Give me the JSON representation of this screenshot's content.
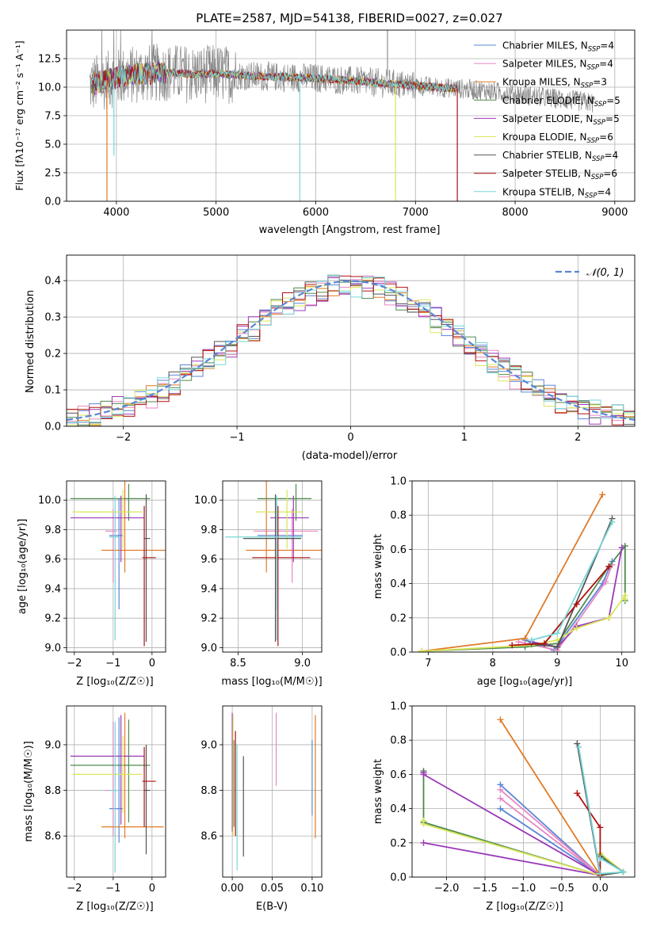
{
  "colors": {
    "Chabrier MILES": "#5b86d6",
    "Salpeter MILES": "#e887c2",
    "Kroupa MILES": "#e07b27",
    "Chabrier ELODIE": "#4e8a4e",
    "Salpeter ELODIE": "#9b3ab8",
    "Kroupa ELODIE": "#d9e65a",
    "Chabrier STELIB": "#555555",
    "Salpeter STELIB": "#b01010",
    "Kroupa STELIB": "#78d6d8",
    "data": "#888888",
    "normal": "#5b86d6"
  },
  "chart_data": [
    {
      "id": "spectrum",
      "type": "line",
      "title": "PLATE=2587, MJD=54138, FIBERID=0027, z=0.027",
      "xlabel": "wavelength [Angstrom, rest frame]",
      "ylabel": "Flux [fλ10⁻¹⁷ erg cm⁻² s⁻¹ A⁻¹]",
      "xlim": [
        3500,
        9200
      ],
      "ylim": [
        0,
        15
      ],
      "xticks": [
        "4000",
        "5000",
        "6000",
        "7000",
        "8000",
        "9000"
      ],
      "yticks": [
        "0.0",
        "2.5",
        "5.0",
        "7.5",
        "10.0",
        "12.5"
      ],
      "legend_position": "top-right",
      "legend": [
        {
          "model": "Chabrier MILES",
          "label": "Chabrier MILES, N",
          "sub": "SSP",
          "tail": "=4"
        },
        {
          "model": "Salpeter MILES",
          "label": "Salpeter MILES, N",
          "sub": "SSP",
          "tail": "=4"
        },
        {
          "model": "Kroupa MILES",
          "label": "Kroupa MILES, N",
          "sub": "SSP",
          "tail": "=3"
        },
        {
          "model": "Chabrier ELODIE",
          "label": "Chabrier ELODIE, N",
          "sub": "SSP",
          "tail": "=5"
        },
        {
          "model": "Salpeter ELODIE",
          "label": "Salpeter ELODIE, N",
          "sub": "SSP",
          "tail": "=5"
        },
        {
          "model": "Kroupa ELODIE",
          "label": "Kroupa ELODIE, N",
          "sub": "SSP",
          "tail": "=6"
        },
        {
          "model": "Chabrier STELIB",
          "label": "Chabrier STELIB, N",
          "sub": "SSP",
          "tail": "=4"
        },
        {
          "model": "Salpeter STELIB",
          "label": "Salpeter STELIB, N",
          "sub": "SSP",
          "tail": "=6"
        },
        {
          "model": "Kroupa STELIB",
          "label": "Kroupa STELIB, N",
          "sub": "SSP",
          "tail": "=4"
        }
      ],
      "continuum_x": [
        3750,
        3900,
        4000,
        4100,
        4300,
        4500,
        4800,
        5000,
        5300,
        5600,
        6000,
        6300,
        6600,
        6900,
        7200,
        7400,
        7700,
        8000,
        8300,
        8600,
        8800
      ],
      "continuum_y": [
        10.2,
        10.6,
        10.8,
        11.0,
        11.2,
        11.3,
        11.1,
        11.2,
        11.0,
        10.9,
        10.8,
        10.6,
        10.4,
        10.2,
        10.0,
        9.9,
        9.7,
        9.4,
        9.1,
        8.8,
        8.6
      ],
      "model_end_x": 7420,
      "dips": [
        {
          "model": "Kroupa STELIB",
          "x": 3975,
          "y": 4.0
        },
        {
          "model": "Kroupa MILES",
          "x": 3905,
          "y": 0.0
        },
        {
          "model": "Kroupa STELIB",
          "x": 5840,
          "y": 0.0
        },
        {
          "model": "Kroupa ELODIE",
          "x": 6800,
          "y": 0.0
        },
        {
          "model": "Salpeter STELIB",
          "x": 7420,
          "y": 0.0
        }
      ]
    },
    {
      "id": "residuals",
      "type": "histogram",
      "xlabel": "(data-model)/error",
      "ylabel": "Normed distribution",
      "xlim": [
        -2.5,
        2.5
      ],
      "ylim": [
        0,
        0.47
      ],
      "xticks": [
        -2,
        -1,
        0,
        1,
        2
      ],
      "xtick_labels": [
        "−2",
        "−1",
        "0",
        "1",
        "2"
      ],
      "yticks": [
        "0.0",
        "0.1",
        "0.2",
        "0.3",
        "0.4"
      ],
      "legend_position": "top-right",
      "legend_label": "𝒩(0, 1)",
      "bin_width": 0.1
    },
    {
      "id": "age-vs-Z",
      "type": "errorbar",
      "xlabel": "Z [log₁₀(Z/Z☉)]",
      "ylabel": "age  [log₁₀(age/yr)]",
      "xlim": [
        -2.2,
        0.35
      ],
      "ylim": [
        8.97,
        10.13
      ],
      "xticks": [
        -2,
        -1,
        0
      ],
      "xtick_labels": [
        "−2",
        "−1",
        "0"
      ],
      "yticks": [
        "9.0",
        "9.2",
        "9.4",
        "9.6",
        "9.8",
        "10.0"
      ],
      "points": [
        {
          "model": "Chabrier MILES",
          "x": -0.85,
          "xerr": [
            0.25,
            0.1
          ],
          "y": 9.76,
          "yerr": [
            0.5,
            0.25
          ]
        },
        {
          "model": "Salpeter MILES",
          "x": -1.0,
          "xerr": [
            0.2,
            0.1
          ],
          "y": 9.79,
          "yerr": [
            0.35,
            0.15
          ]
        },
        {
          "model": "Kroupa MILES",
          "x": -0.7,
          "xerr": [
            0.6,
            1.25
          ],
          "y": 9.66,
          "yerr": [
            0.15,
            0.47
          ]
        },
        {
          "model": "Chabrier ELODIE",
          "x": -0.6,
          "xerr": [
            1.5,
            0.55
          ],
          "y": 10.01,
          "yerr": [
            0.15,
            0.1
          ]
        },
        {
          "model": "Salpeter ELODIE",
          "x": -0.8,
          "xerr": [
            1.3,
            0.6
          ],
          "y": 9.88,
          "yerr": [
            0.3,
            0.15
          ]
        },
        {
          "model": "Kroupa ELODIE",
          "x": -0.75,
          "xerr": [
            1.3,
            0.5
          ],
          "y": 9.92,
          "yerr": [
            0.25,
            0.15
          ]
        },
        {
          "model": "Chabrier STELIB",
          "x": -0.15,
          "xerr": [
            0.05,
            0.1
          ],
          "y": 9.74,
          "yerr": [
            0.7,
            0.3
          ]
        },
        {
          "model": "Salpeter STELIB",
          "x": -0.2,
          "xerr": [
            0.05,
            0.3
          ],
          "y": 9.61,
          "yerr": [
            0.6,
            0.35
          ]
        },
        {
          "model": "Kroupa STELIB",
          "x": -0.95,
          "xerr": [
            0.15,
            0.1
          ],
          "y": 9.75,
          "yerr": [
            0.7,
            0.28
          ]
        }
      ]
    },
    {
      "id": "age-vs-mass",
      "type": "errorbar",
      "xlabel": "mass [log₁₀(M/M☉)]",
      "ylabel": "",
      "xlim": [
        8.38,
        9.15
      ],
      "ylim": [
        8.97,
        10.13
      ],
      "xticks": [
        8.5,
        9.0
      ],
      "xtick_labels": [
        "8.5",
        "9.0"
      ],
      "yticks": [
        "9.0",
        "9.2",
        "9.4",
        "9.6",
        "9.8",
        "10.0"
      ],
      "points": [
        {
          "model": "Chabrier MILES",
          "x": 8.8,
          "xerr": [
            0.15,
            0.2
          ],
          "y": 9.76,
          "yerr": [
            0.5,
            0.25
          ]
        },
        {
          "model": "Salpeter MILES",
          "x": 8.92,
          "xerr": [
            0.3,
            0.2
          ],
          "y": 9.79,
          "yerr": [
            0.35,
            0.15
          ]
        },
        {
          "model": "Kroupa MILES",
          "x": 8.72,
          "xerr": [
            0.16,
            0.43
          ],
          "y": 9.66,
          "yerr": [
            0.15,
            0.47
          ]
        },
        {
          "model": "Chabrier ELODIE",
          "x": 8.95,
          "xerr": [
            0.3,
            0.12
          ],
          "y": 10.01,
          "yerr": [
            0.15,
            0.1
          ]
        },
        {
          "model": "Salpeter ELODIE",
          "x": 8.93,
          "xerr": [
            0.18,
            0.12
          ],
          "y": 9.88,
          "yerr": [
            0.3,
            0.15
          ]
        },
        {
          "model": "Kroupa ELODIE",
          "x": 8.88,
          "xerr": [
            0.24,
            0.12
          ],
          "y": 9.92,
          "yerr": [
            0.25,
            0.15
          ]
        },
        {
          "model": "Chabrier STELIB",
          "x": 8.79,
          "xerr": [
            0.25,
            0.2
          ],
          "y": 9.74,
          "yerr": [
            0.7,
            0.3
          ]
        },
        {
          "model": "Salpeter STELIB",
          "x": 8.81,
          "xerr": [
            0.2,
            0.25
          ],
          "y": 9.61,
          "yerr": [
            0.6,
            0.35
          ]
        },
        {
          "model": "Kroupa STELIB",
          "x": 8.8,
          "xerr": [
            0.4,
            0.2
          ],
          "y": 9.75,
          "yerr": [
            0.7,
            0.28
          ]
        }
      ]
    },
    {
      "id": "weight-vs-age",
      "type": "line",
      "xlabel": "age  [log₁₀(age/yr)]",
      "ylabel": "mass weight",
      "xlim": [
        6.75,
        10.2
      ],
      "ylim": [
        0,
        1.0
      ],
      "xticks": [
        7,
        8,
        9,
        10
      ],
      "xtick_labels": [
        "7",
        "8",
        "9",
        "10"
      ],
      "yticks": [
        "0.0",
        "0.2",
        "0.4",
        "0.6",
        "0.8",
        "1.0"
      ],
      "series": [
        {
          "model": "Chabrier MILES",
          "x": [
            8.5,
            8.95,
            9.7,
            9.85
          ],
          "y": [
            0.07,
            0.01,
            0.4,
            0.53
          ]
        },
        {
          "model": "Salpeter MILES",
          "x": [
            8.4,
            9.0,
            9.75,
            9.85
          ],
          "y": [
            0.06,
            0.01,
            0.41,
            0.51
          ]
        },
        {
          "model": "Kroupa MILES",
          "x": [
            6.9,
            8.5,
            9.7
          ],
          "y": [
            0.005,
            0.08,
            0.92
          ]
        },
        {
          "model": "Chabrier ELODIE",
          "x": [
            6.9,
            8.5,
            9.0,
            9.8,
            10.05,
            10.05
          ],
          "y": [
            0.005,
            0.03,
            0.05,
            0.5,
            0.62,
            0.3
          ]
        },
        {
          "model": "Salpeter ELODIE",
          "x": [
            8.6,
            9.0,
            9.3,
            9.8,
            10.0
          ],
          "y": [
            0.06,
            0.03,
            0.15,
            0.2,
            0.61
          ]
        },
        {
          "model": "Kroupa ELODIE",
          "x": [
            6.9,
            8.6,
            9.0,
            9.3,
            9.8,
            10.05,
            10.05
          ],
          "y": [
            0.005,
            0.04,
            0.07,
            0.14,
            0.2,
            0.33,
            0.31
          ]
        },
        {
          "model": "Chabrier STELIB",
          "x": [
            8.6,
            9.0,
            9.85
          ],
          "y": [
            0.05,
            0.03,
            0.78
          ]
        },
        {
          "model": "Salpeter STELIB",
          "x": [
            8.3,
            8.8,
            9.3,
            9.8
          ],
          "y": [
            0.04,
            0.05,
            0.28,
            0.5
          ]
        },
        {
          "model": "Kroupa STELIB",
          "x": [
            8.6,
            9.0,
            9.85
          ],
          "y": [
            0.07,
            0.11,
            0.76
          ]
        }
      ]
    },
    {
      "id": "mass-vs-Z",
      "type": "errorbar",
      "xlabel": "Z [log₁₀(Z/Z☉)]",
      "ylabel": "mass [log₁₀(M/M☉)]",
      "xlim": [
        -2.2,
        0.35
      ],
      "ylim": [
        8.42,
        9.17
      ],
      "xticks": [
        -2,
        -1,
        0
      ],
      "xtick_labels": [
        "−2",
        "−1",
        "0"
      ],
      "yticks": [
        "8.6",
        "8.8",
        "9.0"
      ],
      "points": [
        {
          "model": "Chabrier MILES",
          "x": -0.85,
          "xerr": [
            0.25,
            0.1
          ],
          "y": 8.72,
          "yerr": [
            0.15,
            0.4
          ]
        },
        {
          "model": "Salpeter MILES",
          "x": -1.0,
          "xerr": [
            0.2,
            0.1
          ],
          "y": 8.8,
          "yerr": [
            0.2,
            0.3
          ]
        },
        {
          "model": "Kroupa MILES",
          "x": -0.7,
          "xerr": [
            0.6,
            1.0
          ],
          "y": 8.64,
          "yerr": [
            0.05,
            0.5
          ]
        },
        {
          "model": "Chabrier ELODIE",
          "x": -0.6,
          "xerr": [
            1.5,
            0.55
          ],
          "y": 8.91,
          "yerr": [
            0.25,
            0.2
          ]
        },
        {
          "model": "Salpeter ELODIE",
          "x": -0.8,
          "xerr": [
            1.3,
            0.6
          ],
          "y": 8.95,
          "yerr": [
            0.3,
            0.18
          ]
        },
        {
          "model": "Kroupa ELODIE",
          "x": -0.75,
          "xerr": [
            1.3,
            0.5
          ],
          "y": 8.87,
          "yerr": [
            0.17,
            0.17
          ]
        },
        {
          "model": "Chabrier STELIB",
          "x": -0.15,
          "xerr": [
            0.05,
            0.1
          ],
          "y": 8.8,
          "yerr": [
            0.28,
            0.2
          ]
        },
        {
          "model": "Salpeter STELIB",
          "x": -0.2,
          "xerr": [
            0.05,
            0.3
          ],
          "y": 8.84,
          "yerr": [
            0.2,
            0.15
          ]
        },
        {
          "model": "Kroupa STELIB",
          "x": -0.95,
          "xerr": [
            0.15,
            0.1
          ],
          "y": 8.8,
          "yerr": [
            0.36,
            0.3
          ]
        }
      ]
    },
    {
      "id": "mass-vs-EBV",
      "type": "errorbar",
      "xlabel": "E(B-V)",
      "ylabel": "",
      "xlim": [
        -0.012,
        0.112
      ],
      "ylim": [
        8.42,
        9.17
      ],
      "xticks": [
        0.0,
        0.05,
        0.1
      ],
      "xtick_labels": [
        "0.00",
        "0.05",
        "0.10"
      ],
      "yticks": [
        "8.6",
        "8.8",
        "9.0"
      ],
      "points": [
        {
          "model": "Chabrier MILES",
          "x": 0.1,
          "y": 8.85,
          "yerr": [
            0.16,
            0.17
          ]
        },
        {
          "model": "Salpeter MILES",
          "x": 0.055,
          "y": 8.98,
          "yerr": [
            0.16,
            0.16
          ]
        },
        {
          "model": "Kroupa MILES",
          "x": 0.104,
          "y": 8.86,
          "yerr": [
            0.27,
            0.27
          ]
        },
        {
          "model": "Chabrier ELODIE",
          "x": 0.002,
          "y": 8.83,
          "yerr": [
            0.19,
            0.19
          ]
        },
        {
          "model": "Salpeter ELODIE",
          "x": 0.0,
          "y": 8.92,
          "yerr": [
            0.3,
            0.22
          ]
        },
        {
          "model": "Kroupa ELODIE",
          "x": 0.001,
          "y": 8.87,
          "yerr": [
            0.27,
            0.26
          ]
        },
        {
          "model": "Chabrier STELIB",
          "x": 0.014,
          "y": 8.73,
          "yerr": [
            0.22,
            0.22
          ]
        },
        {
          "model": "Salpeter STELIB",
          "x": 0.004,
          "y": 8.83,
          "yerr": [
            0.23,
            0.23
          ]
        },
        {
          "model": "Kroupa STELIB",
          "x": 0.006,
          "y": 8.75,
          "yerr": [
            0.3,
            0.25
          ]
        }
      ]
    },
    {
      "id": "weight-vs-Z",
      "type": "line",
      "xlabel": "Z [log₁₀(Z/Z☉)]",
      "ylabel": "mass weight",
      "xlim": [
        -2.45,
        0.45
      ],
      "ylim": [
        0,
        1.0
      ],
      "xticks": [
        -2.0,
        -1.5,
        -1.0,
        -0.5,
        0.0
      ],
      "xtick_labels": [
        "−2.0",
        "−1.5",
        "−1.0",
        "−0.5",
        "0.0"
      ],
      "yticks": [
        "0.0",
        "0.2",
        "0.4",
        "0.6",
        "0.8",
        "1.0"
      ],
      "series": [
        {
          "model": "Chabrier MILES",
          "x": [
            -1.3,
            0.0,
            -1.3
          ],
          "y": [
            0.54,
            0.01,
            0.4
          ]
        },
        {
          "model": "Salpeter MILES",
          "x": [
            -1.3,
            0.0,
            -1.3
          ],
          "y": [
            0.51,
            0.01,
            0.46
          ]
        },
        {
          "model": "Kroupa MILES",
          "x": [
            -1.3,
            0.0
          ],
          "y": [
            0.92,
            0.01
          ]
        },
        {
          "model": "Chabrier ELODIE",
          "x": [
            -2.3,
            -2.3,
            0.0,
            0.3,
            0.0
          ],
          "y": [
            0.62,
            0.32,
            0.01,
            0.03,
            0.13
          ]
        },
        {
          "model": "Salpeter ELODIE",
          "x": [
            -2.3,
            -2.3,
            0.0,
            -2.3
          ],
          "y": [
            0.61,
            0.6,
            0.01,
            0.2
          ]
        },
        {
          "model": "Kroupa ELODIE",
          "x": [
            -2.3,
            -2.3,
            0.0,
            0.3,
            0.0
          ],
          "y": [
            0.33,
            0.31,
            0.01,
            0.03,
            0.14
          ]
        },
        {
          "model": "Chabrier STELIB",
          "x": [
            -0.3,
            0.0,
            0.3,
            0.0
          ],
          "y": [
            0.78,
            0.01,
            0.03,
            0.12
          ]
        },
        {
          "model": "Salpeter STELIB",
          "x": [
            -0.3,
            0.0,
            0.0
          ],
          "y": [
            0.49,
            0.29,
            0.01
          ]
        },
        {
          "model": "Kroupa STELIB",
          "x": [
            -0.28,
            0.0,
            0.3,
            0.0
          ],
          "y": [
            0.76,
            0.02,
            0.03,
            0.11
          ]
        }
      ]
    }
  ]
}
